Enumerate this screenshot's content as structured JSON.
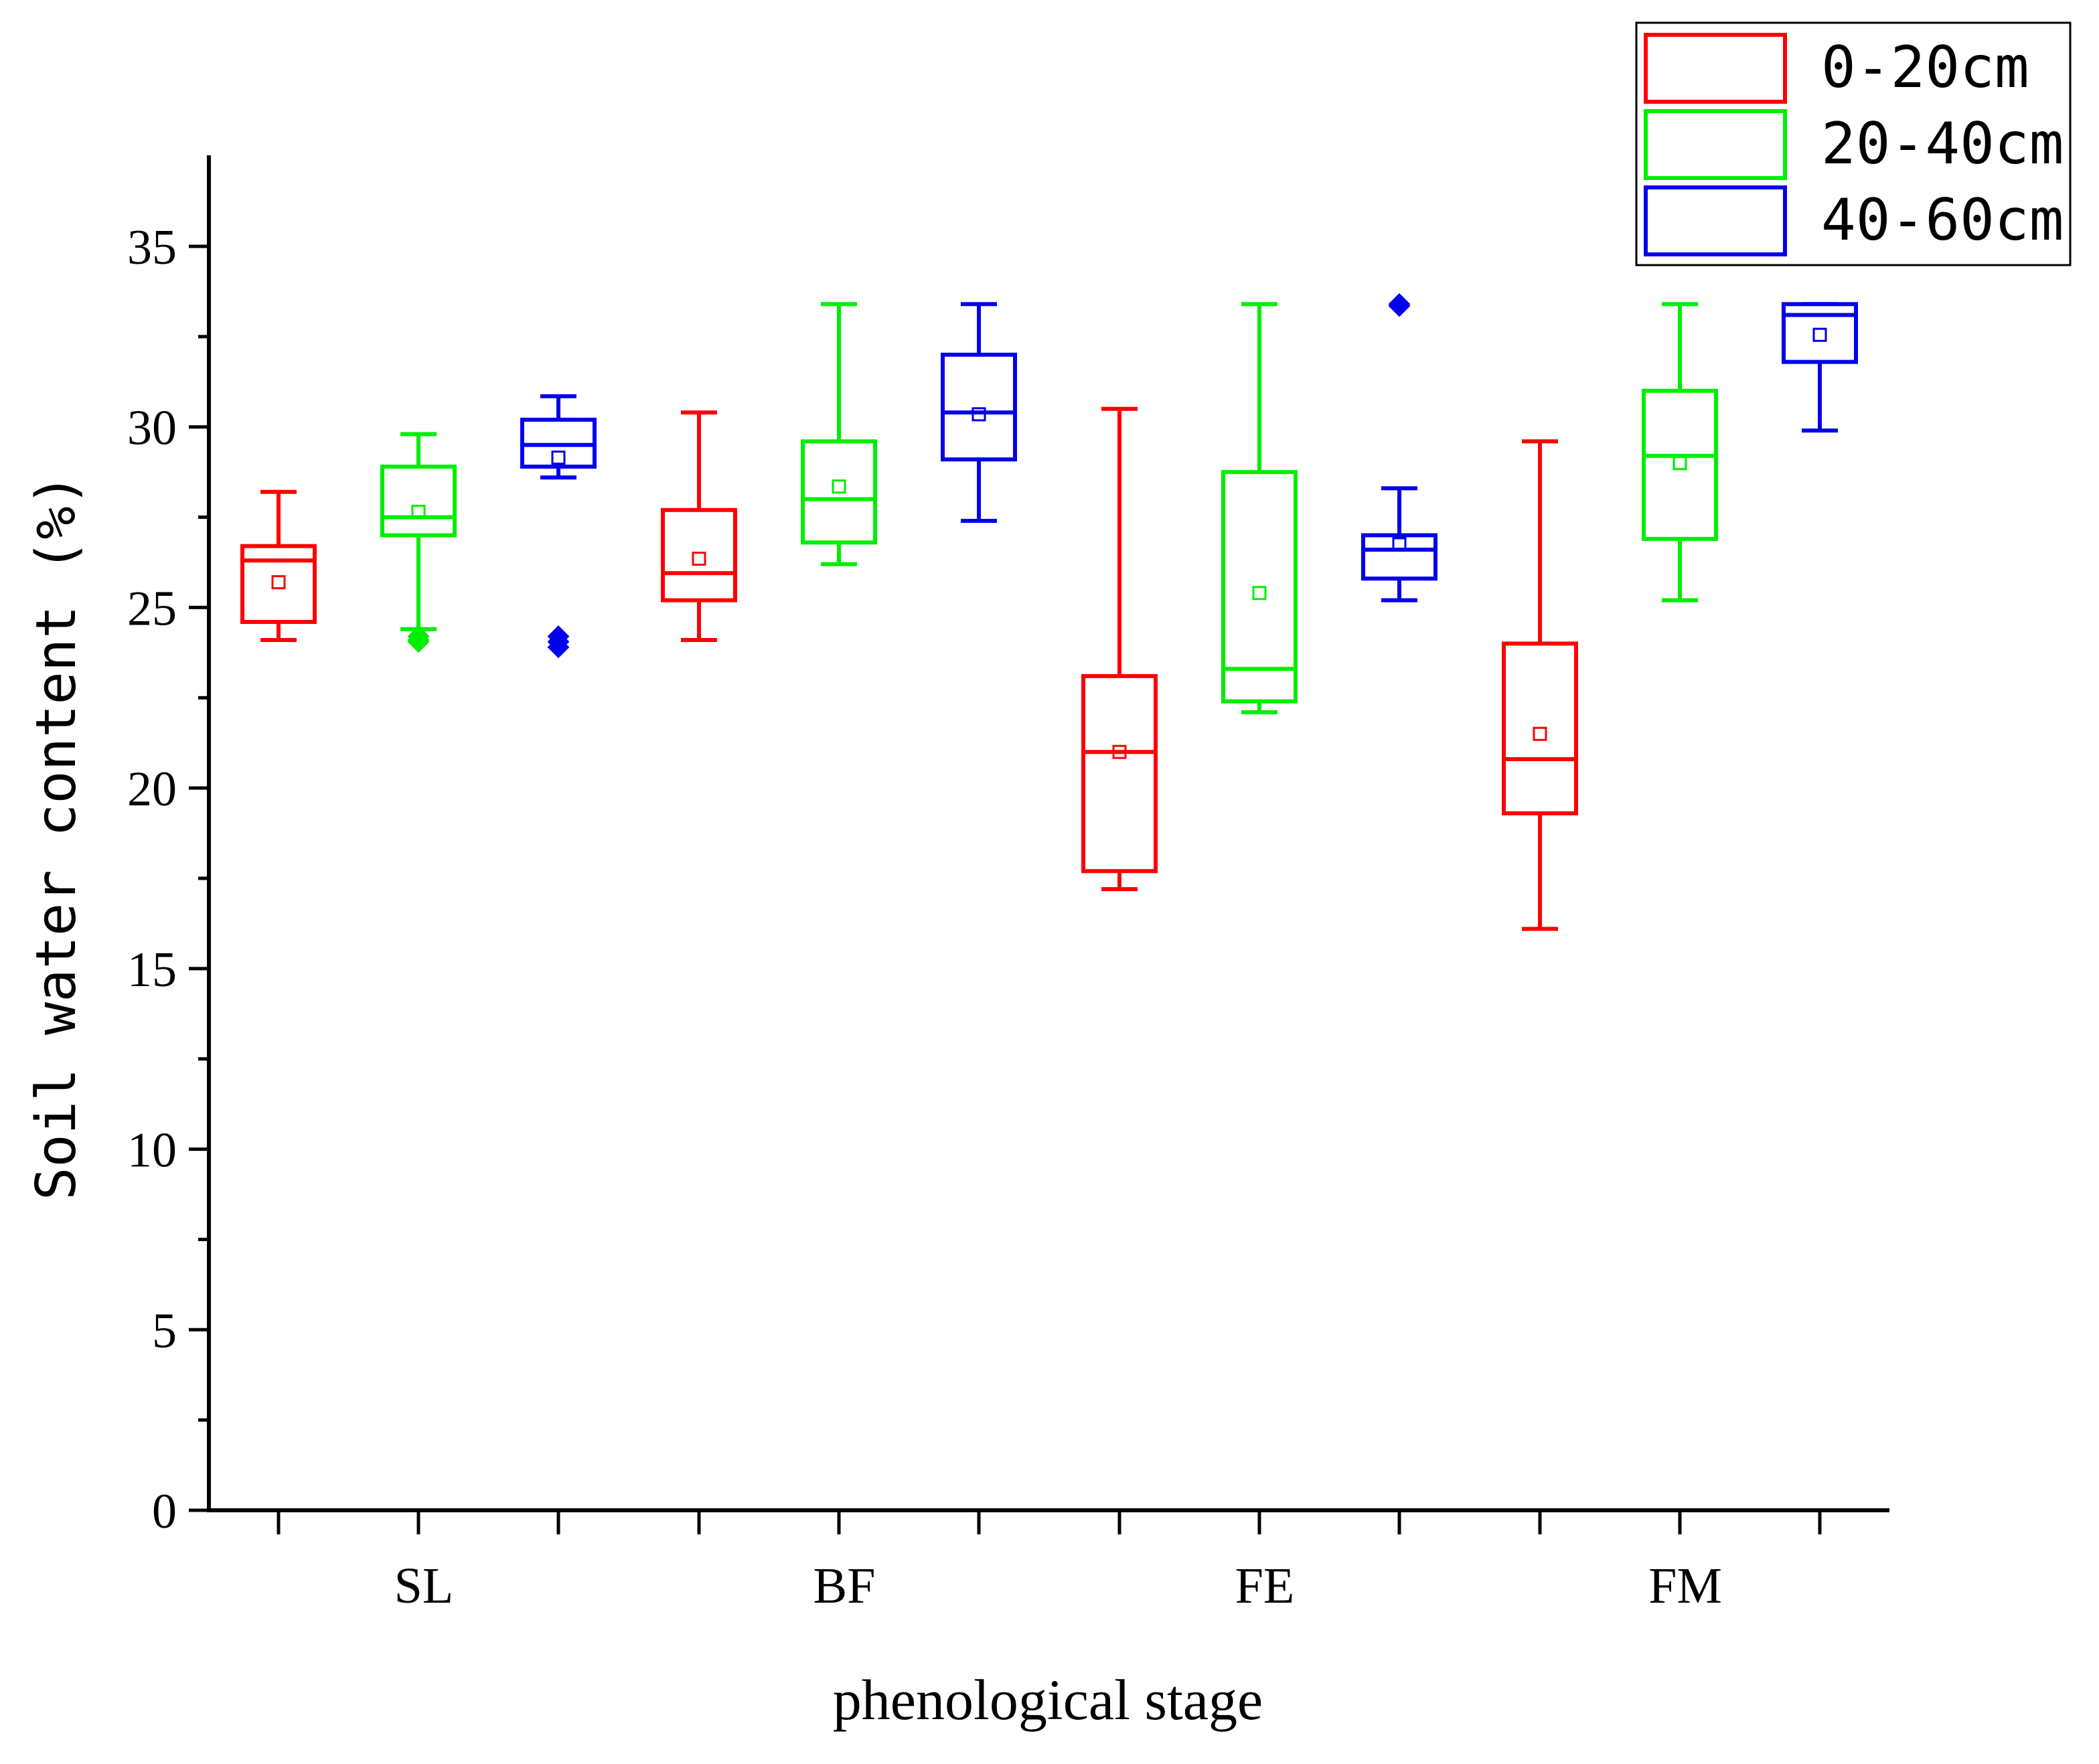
{
  "chart_data": {
    "type": "box",
    "xlabel": "phenological stage",
    "ylabel": "Soil water content (%)",
    "ylim": [
      0,
      37.5
    ],
    "yticks": [
      0,
      5,
      10,
      15,
      20,
      25,
      30,
      35
    ],
    "ytick_labels": [
      "0",
      "5",
      "10",
      "15",
      "20",
      "25",
      "30",
      "35"
    ],
    "categories": [
      "SL",
      "BF",
      "FE",
      "FM"
    ],
    "legend_position": "top-right",
    "series": [
      {
        "name": "0-20cm",
        "color": "#ff0000",
        "boxes": [
          {
            "whisker_low": 24.1,
            "q1": 24.6,
            "median": 26.3,
            "q3": 26.7,
            "whisker_high": 28.2,
            "mean": 25.7,
            "outliers": []
          },
          {
            "whisker_low": 24.1,
            "q1": 25.2,
            "median": 25.95,
            "q3": 27.7,
            "whisker_high": 30.4,
            "mean": 26.35,
            "outliers": []
          },
          {
            "whisker_low": 17.2,
            "q1": 17.7,
            "median": 21.0,
            "q3": 23.1,
            "whisker_high": 30.5,
            "mean": 21.0,
            "outliers": []
          },
          {
            "whisker_low": 16.1,
            "q1": 19.3,
            "median": 20.8,
            "q3": 24.0,
            "whisker_high": 29.6,
            "mean": 21.5,
            "outliers": []
          }
        ]
      },
      {
        "name": "20-40cm",
        "color": "#00ee00",
        "boxes": [
          {
            "whisker_low": 24.4,
            "q1": 27.0,
            "median": 27.5,
            "q3": 28.9,
            "whisker_high": 29.8,
            "mean": 27.65,
            "outliers": [
              24.2,
              24.1,
              24.05
            ]
          },
          {
            "whisker_low": 26.2,
            "q1": 26.8,
            "median": 28.0,
            "q3": 29.6,
            "whisker_high": 33.4,
            "mean": 28.35,
            "outliers": []
          },
          {
            "whisker_low": 22.1,
            "q1": 22.4,
            "median": 23.3,
            "q3": 28.75,
            "whisker_high": 33.4,
            "mean": 25.4,
            "outliers": []
          },
          {
            "whisker_low": 25.2,
            "q1": 26.9,
            "median": 29.2,
            "q3": 31.0,
            "whisker_high": 33.4,
            "mean": 29.0,
            "outliers": []
          }
        ]
      },
      {
        "name": "40-60cm",
        "color": "#0000ee",
        "boxes": [
          {
            "whisker_low": 28.6,
            "q1": 28.9,
            "median": 29.5,
            "q3": 30.2,
            "whisker_high": 30.85,
            "mean": 29.15,
            "outliers": [
              24.2,
              24.05,
              23.9
            ]
          },
          {
            "whisker_low": 27.4,
            "q1": 29.1,
            "median": 30.4,
            "q3": 32.0,
            "whisker_high": 33.4,
            "mean": 30.35,
            "outliers": []
          },
          {
            "whisker_low": 25.2,
            "q1": 25.8,
            "median": 26.6,
            "q3": 27.0,
            "whisker_high": 28.3,
            "mean": 26.75,
            "outliers": [
              33.4,
              33.35
            ]
          },
          {
            "whisker_low": 29.9,
            "q1": 31.8,
            "median": 33.1,
            "q3": 33.4,
            "whisker_high": 33.4,
            "mean": 32.55,
            "outliers": []
          }
        ]
      }
    ]
  }
}
